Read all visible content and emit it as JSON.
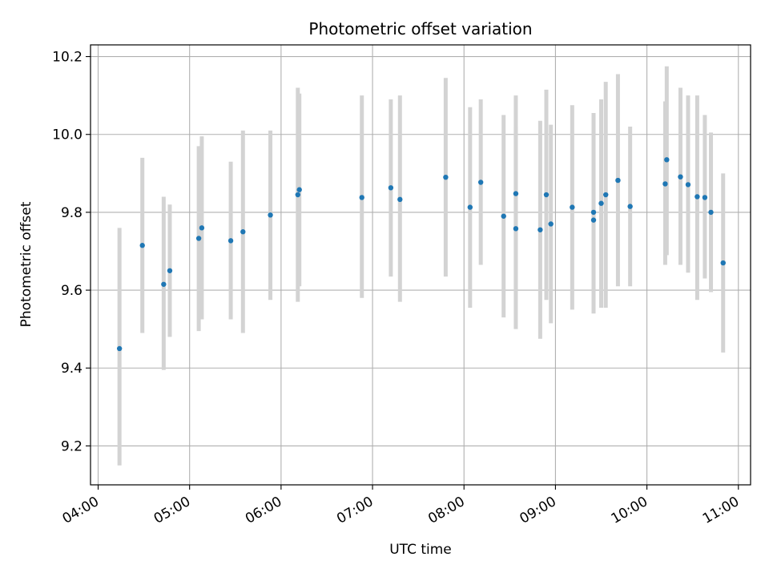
{
  "chart_data": {
    "type": "scatter",
    "title": "Photometric offset variation",
    "xlabel": "UTC time",
    "ylabel": "Photometric offset",
    "grid": true,
    "legend": "none",
    "x_axis_type": "time",
    "xlim": [
      "03:55",
      "11:08"
    ],
    "ylim": [
      9.1,
      10.23
    ],
    "x_ticks": [
      {
        "t": "04:00",
        "label": "04:00"
      },
      {
        "t": "05:00",
        "label": "05:00"
      },
      {
        "t": "06:00",
        "label": "06:00"
      },
      {
        "t": "07:00",
        "label": "07:00"
      },
      {
        "t": "08:00",
        "label": "08:00"
      },
      {
        "t": "09:00",
        "label": "09:00"
      },
      {
        "t": "10:00",
        "label": "10:00"
      },
      {
        "t": "11:00",
        "label": "11:00"
      }
    ],
    "y_ticks": [
      {
        "v": 9.2,
        "label": "9.2"
      },
      {
        "v": 9.4,
        "label": "9.4"
      },
      {
        "v": 9.6,
        "label": "9.6"
      },
      {
        "v": 9.8,
        "label": "9.8"
      },
      {
        "v": 10.0,
        "label": "10.0"
      },
      {
        "v": 10.2,
        "label": "10.2"
      }
    ],
    "colors": {
      "point": "#1f77b4",
      "errorbar": "#d3d3d3",
      "grid": "#b0b0b0"
    },
    "points": [
      {
        "t": "04:14",
        "y": 9.45,
        "lo": 9.15,
        "hi": 9.76
      },
      {
        "t": "04:29",
        "y": 9.715,
        "lo": 9.49,
        "hi": 9.94
      },
      {
        "t": "04:43",
        "y": 9.615,
        "lo": 9.395,
        "hi": 9.84
      },
      {
        "t": "04:47",
        "y": 9.65,
        "lo": 9.48,
        "hi": 9.82
      },
      {
        "t": "05:06",
        "y": 9.733,
        "lo": 9.495,
        "hi": 9.97
      },
      {
        "t": "05:08",
        "y": 9.76,
        "lo": 9.525,
        "hi": 9.995
      },
      {
        "t": "05:27",
        "y": 9.727,
        "lo": 9.525,
        "hi": 9.93
      },
      {
        "t": "05:35",
        "y": 9.75,
        "lo": 9.49,
        "hi": 10.01
      },
      {
        "t": "05:53",
        "y": 9.793,
        "lo": 9.575,
        "hi": 10.01
      },
      {
        "t": "06:11",
        "y": 9.845,
        "lo": 9.57,
        "hi": 10.12
      },
      {
        "t": "06:12",
        "y": 9.858,
        "lo": 9.61,
        "hi": 10.105
      },
      {
        "t": "06:53",
        "y": 9.838,
        "lo": 9.58,
        "hi": 10.1
      },
      {
        "t": "07:12",
        "y": 9.863,
        "lo": 9.635,
        "hi": 10.09
      },
      {
        "t": "07:18",
        "y": 9.833,
        "lo": 9.57,
        "hi": 10.1
      },
      {
        "t": "07:48",
        "y": 9.89,
        "lo": 9.635,
        "hi": 10.145
      },
      {
        "t": "08:04",
        "y": 9.813,
        "lo": 9.555,
        "hi": 10.07
      },
      {
        "t": "08:11",
        "y": 9.877,
        "lo": 9.665,
        "hi": 10.09
      },
      {
        "t": "08:26",
        "y": 9.79,
        "lo": 9.53,
        "hi": 10.05
      },
      {
        "t": "08:34",
        "y": 9.758,
        "lo": 9.5,
        "hi": 10.02
      },
      {
        "t": "08:34",
        "y": 9.848,
        "lo": 9.6,
        "hi": 10.1
      },
      {
        "t": "08:50",
        "y": 9.755,
        "lo": 9.475,
        "hi": 10.035
      },
      {
        "t": "08:54",
        "y": 9.845,
        "lo": 9.575,
        "hi": 10.115
      },
      {
        "t": "08:57",
        "y": 9.77,
        "lo": 9.515,
        "hi": 10.025
      },
      {
        "t": "09:11",
        "y": 9.813,
        "lo": 9.55,
        "hi": 10.075
      },
      {
        "t": "09:25",
        "y": 9.78,
        "lo": 9.54,
        "hi": 10.02
      },
      {
        "t": "09:25",
        "y": 9.8,
        "lo": 9.545,
        "hi": 10.055
      },
      {
        "t": "09:30",
        "y": 9.823,
        "lo": 9.555,
        "hi": 10.09
      },
      {
        "t": "09:33",
        "y": 9.845,
        "lo": 9.555,
        "hi": 10.135
      },
      {
        "t": "09:41",
        "y": 9.882,
        "lo": 9.61,
        "hi": 10.155
      },
      {
        "t": "09:49",
        "y": 9.815,
        "lo": 9.61,
        "hi": 10.02
      },
      {
        "t": "10:12",
        "y": 9.873,
        "lo": 9.665,
        "hi": 10.085
      },
      {
        "t": "10:13",
        "y": 9.935,
        "lo": 9.69,
        "hi": 10.175
      },
      {
        "t": "10:22",
        "y": 9.891,
        "lo": 9.665,
        "hi": 10.12
      },
      {
        "t": "10:27",
        "y": 9.871,
        "lo": 9.645,
        "hi": 10.1
      },
      {
        "t": "10:33",
        "y": 9.84,
        "lo": 9.575,
        "hi": 10.1
      },
      {
        "t": "10:38",
        "y": 9.838,
        "lo": 9.63,
        "hi": 10.05
      },
      {
        "t": "10:42",
        "y": 9.8,
        "lo": 9.595,
        "hi": 10.005
      },
      {
        "t": "10:50",
        "y": 9.67,
        "lo": 9.44,
        "hi": 9.9
      }
    ]
  }
}
